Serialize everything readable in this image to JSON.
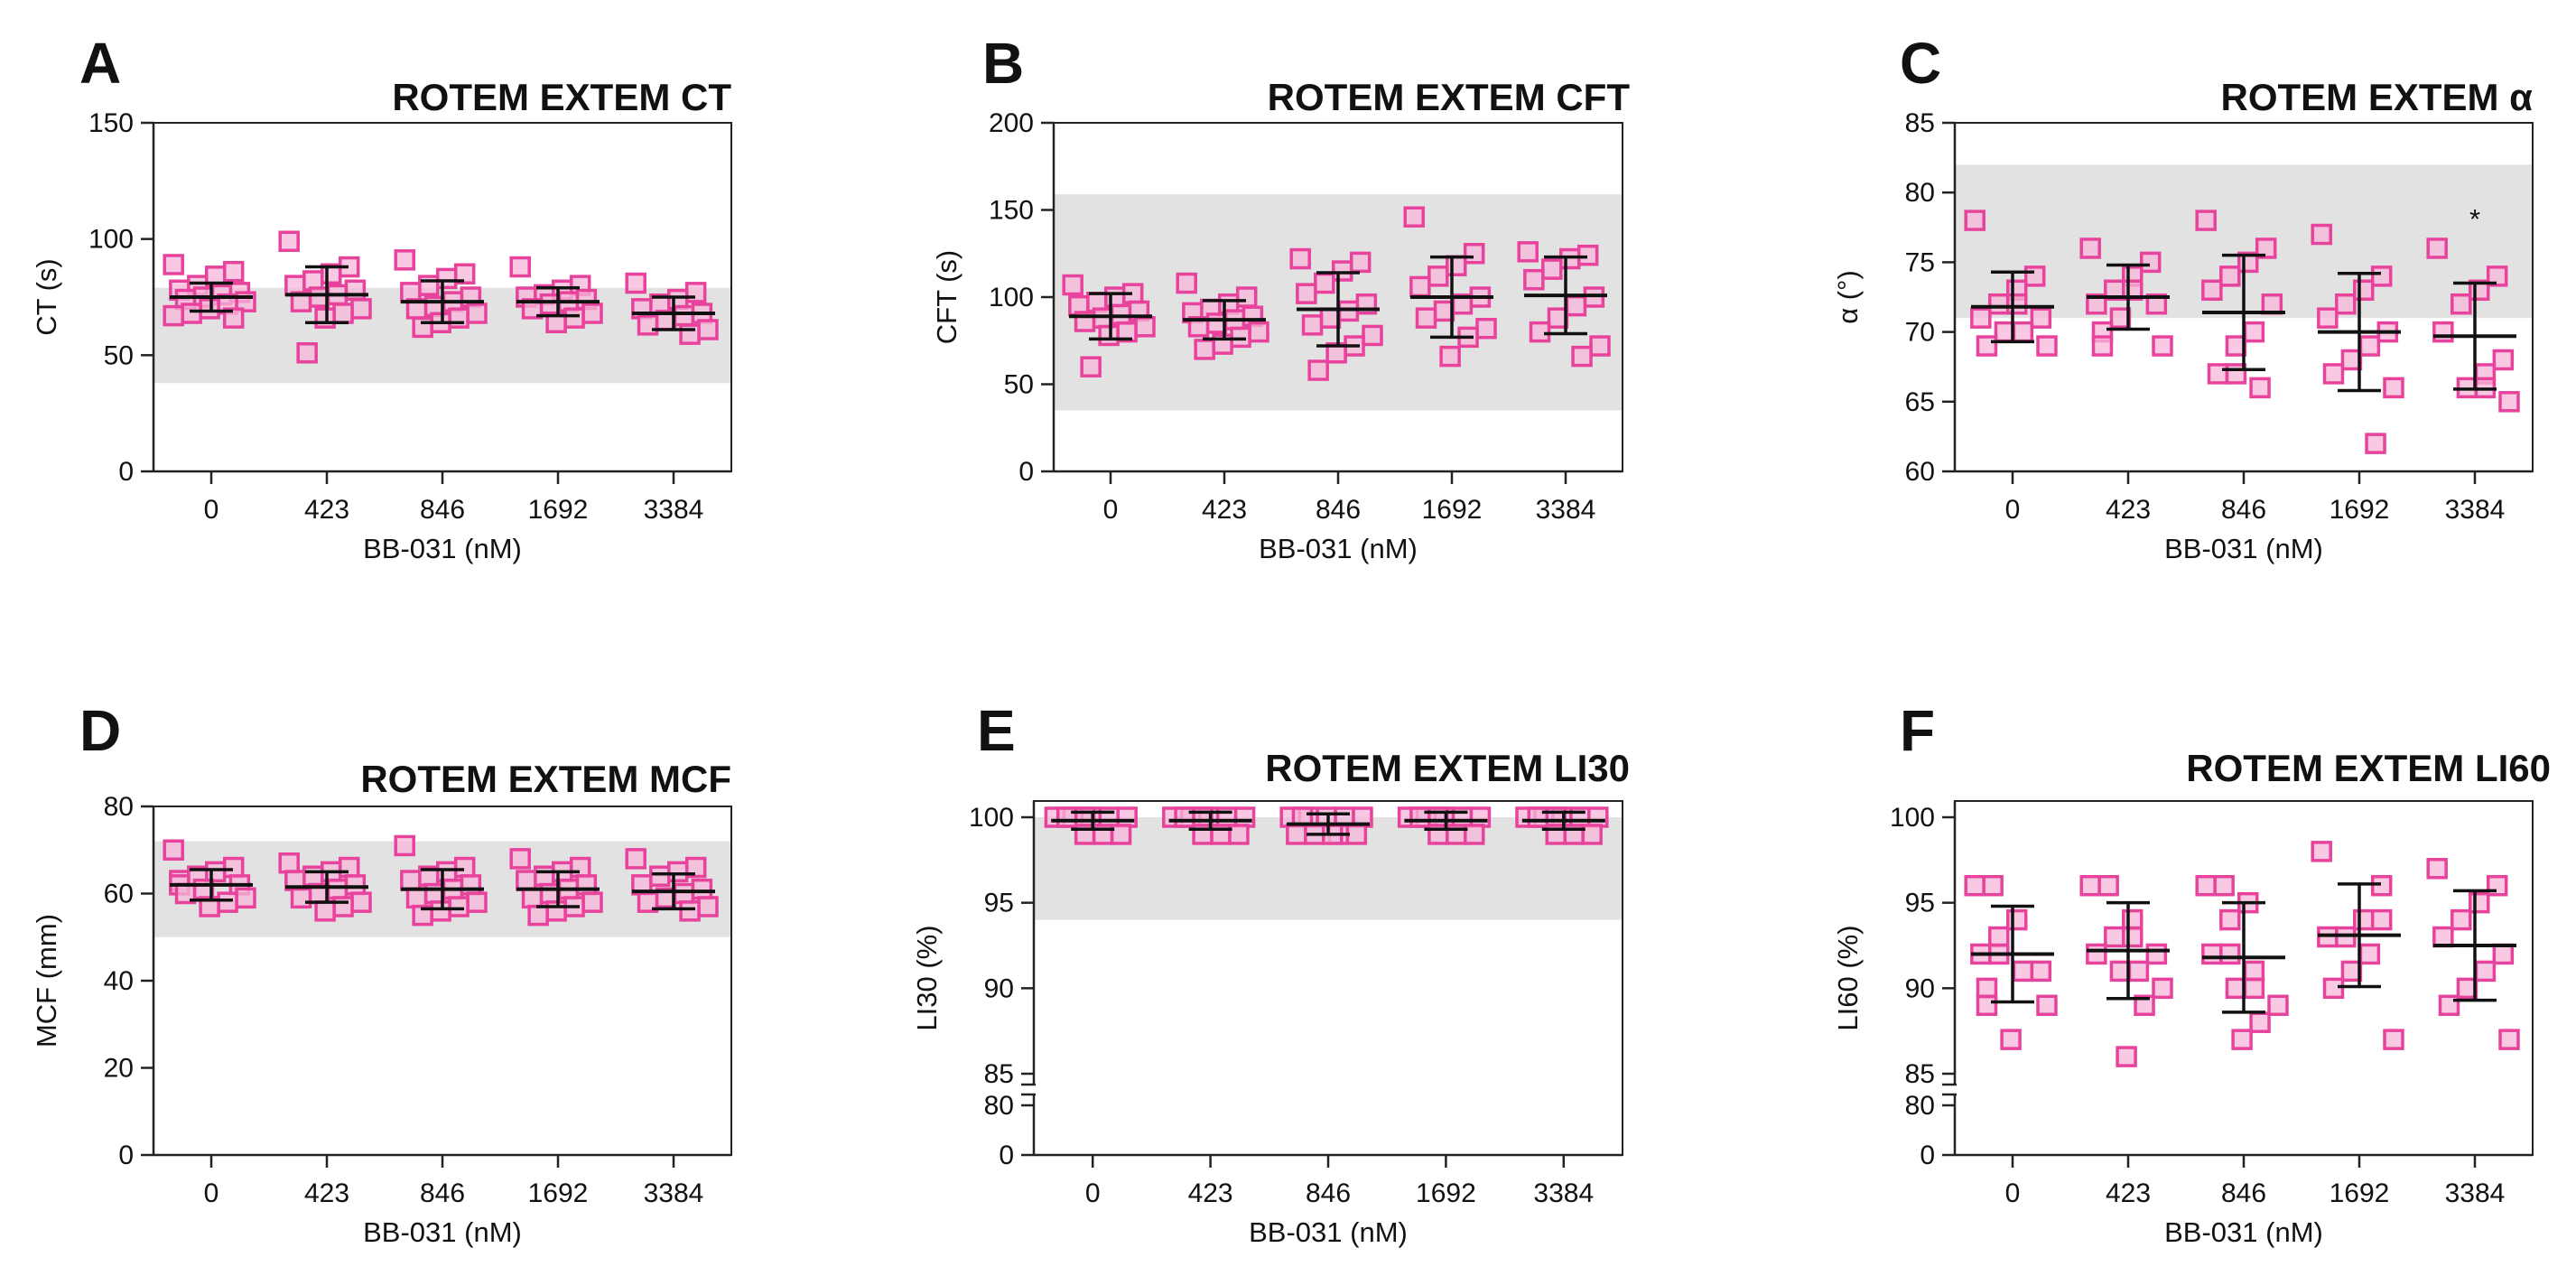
{
  "chart_data": [
    {
      "type": "scatter",
      "panel": "A",
      "title": "ROTEM EXTEM CT",
      "xlabel": "BB-031 (nM)",
      "ylabel": "CT (s)",
      "categories": [
        "0",
        "423",
        "846",
        "1692",
        "3384"
      ],
      "yticks": [
        0,
        50,
        100,
        150
      ],
      "ylim": [
        0,
        150
      ],
      "reference_range": [
        38,
        79
      ],
      "series": [
        {
          "name": "0",
          "points": [
            89,
            86,
            84,
            80,
            78,
            77,
            76,
            75,
            74,
            73,
            72,
            70,
            68,
            67,
            66
          ],
          "mean": 75,
          "sd": 6
        },
        {
          "name": "423",
          "points": [
            99,
            88,
            85,
            82,
            80,
            78,
            76,
            75,
            73,
            70,
            68,
            66,
            51
          ],
          "mean": 76,
          "sd": 12
        },
        {
          "name": "846",
          "points": [
            91,
            85,
            83,
            80,
            77,
            75,
            73,
            71,
            70,
            68,
            66,
            64,
            62
          ],
          "mean": 73,
          "sd": 9
        },
        {
          "name": "1692",
          "points": [
            88,
            80,
            78,
            76,
            75,
            74,
            73,
            72,
            70,
            68,
            66,
            64
          ],
          "mean": 73,
          "sd": 6
        },
        {
          "name": "3384",
          "points": [
            81,
            77,
            74,
            72,
            70,
            68,
            67,
            65,
            63,
            61,
            59
          ],
          "mean": 68,
          "sd": 7
        }
      ],
      "marker": "square",
      "color": "#e8439c",
      "fill": "#f7b6d8"
    },
    {
      "type": "scatter",
      "panel": "B",
      "title": "ROTEM EXTEM CFT",
      "xlabel": "BB-031 (nM)",
      "ylabel": "CFT (s)",
      "categories": [
        "0",
        "423",
        "846",
        "1692",
        "3384"
      ],
      "yticks": [
        0,
        50,
        100,
        150,
        200
      ],
      "ylim": [
        0,
        200
      ],
      "reference_range": [
        35,
        159
      ],
      "series": [
        {
          "name": "0",
          "points": [
            107,
            102,
            100,
            97,
            95,
            92,
            90,
            88,
            86,
            83,
            80,
            78,
            60
          ],
          "mean": 89,
          "sd": 13
        },
        {
          "name": "423",
          "points": [
            108,
            100,
            96,
            93,
            91,
            89,
            87,
            85,
            83,
            80,
            77,
            73,
            70
          ],
          "mean": 87,
          "sd": 11
        },
        {
          "name": "846",
          "points": [
            122,
            120,
            115,
            108,
            102,
            96,
            92,
            88,
            84,
            78,
            72,
            68,
            58
          ],
          "mean": 93,
          "sd": 21
        },
        {
          "name": "1692",
          "points": [
            146,
            125,
            118,
            112,
            106,
            100,
            96,
            92,
            88,
            82,
            77,
            66
          ],
          "mean": 100,
          "sd": 23
        },
        {
          "name": "3384",
          "points": [
            126,
            124,
            122,
            116,
            110,
            100,
            95,
            88,
            80,
            72,
            66
          ],
          "mean": 101,
          "sd": 22
        }
      ],
      "marker": "square",
      "color": "#e8439c",
      "fill": "#f7b6d8"
    },
    {
      "type": "scatter",
      "panel": "C",
      "title": "ROTEM  EXTEM α",
      "xlabel": "BB-031 (nM)",
      "ylabel": "α (°)",
      "categories": [
        "0",
        "423",
        "846",
        "1692",
        "3384"
      ],
      "yticks": [
        60,
        65,
        70,
        75,
        80,
        85
      ],
      "ylim": [
        60,
        85
      ],
      "reference_range": [
        71,
        82
      ],
      "annotation": {
        "text": "*",
        "category": "3384"
      },
      "series": [
        {
          "name": "0",
          "points": [
            78,
            74,
            73,
            72,
            72,
            71,
            71,
            70,
            70,
            69,
            69
          ],
          "mean": 71.8,
          "sd": 2.5
        },
        {
          "name": "423",
          "points": [
            76,
            75,
            74,
            73,
            73,
            72,
            72,
            71,
            70,
            69,
            69
          ],
          "mean": 72.5,
          "sd": 2.3
        },
        {
          "name": "846",
          "points": [
            78,
            76,
            75,
            74,
            73,
            72,
            70,
            69,
            67,
            67,
            66
          ],
          "mean": 71.4,
          "sd": 4.1
        },
        {
          "name": "1692",
          "points": [
            77,
            74,
            73,
            72,
            71,
            70,
            69,
            68,
            67,
            66,
            62
          ],
          "mean": 70,
          "sd": 4.2
        },
        {
          "name": "3384",
          "points": [
            76,
            74,
            73,
            72,
            70,
            68,
            67,
            66,
            66,
            65
          ],
          "mean": 69.7,
          "sd": 3.8
        }
      ],
      "marker": "square",
      "color": "#e8439c",
      "fill": "#f7b6d8"
    },
    {
      "type": "scatter",
      "panel": "D",
      "title": "ROTEM EXTEM MCF",
      "xlabel": "BB-031 (nM)",
      "ylabel": "MCF (mm)",
      "categories": [
        "0",
        "423",
        "846",
        "1692",
        "3384"
      ],
      "yticks": [
        0,
        20,
        40,
        60,
        80
      ],
      "ylim": [
        0,
        80
      ],
      "reference_range": [
        50,
        72
      ],
      "series": [
        {
          "name": "0",
          "points": [
            70,
            66,
            65,
            64,
            63,
            62,
            62,
            61,
            60,
            59,
            58,
            57
          ],
          "mean": 62,
          "sd": 3.5
        },
        {
          "name": "423",
          "points": [
            67,
            66,
            65,
            64,
            63,
            62,
            61,
            60,
            59,
            58,
            57,
            56
          ],
          "mean": 61.5,
          "sd": 3.5
        },
        {
          "name": "846",
          "points": [
            71,
            66,
            65,
            64,
            63,
            62,
            61,
            60,
            59,
            58,
            57,
            56,
            55
          ],
          "mean": 61,
          "sd": 4.5
        },
        {
          "name": "1692",
          "points": [
            68,
            66,
            65,
            64,
            63,
            62,
            61,
            60,
            59,
            58,
            57,
            56,
            55
          ],
          "mean": 61,
          "sd": 4
        },
        {
          "name": "3384",
          "points": [
            68,
            66,
            65,
            64,
            62,
            61,
            60,
            59,
            58,
            57,
            56
          ],
          "mean": 60.5,
          "sd": 4
        }
      ],
      "marker": "square",
      "color": "#e8439c",
      "fill": "#f7b6d8"
    },
    {
      "type": "scatter",
      "panel": "E",
      "title": "ROTEM  EXTEM LI30",
      "xlabel": "BB-031 (nM)",
      "ylabel": "LI30 (%)",
      "categories": [
        "0",
        "423",
        "846",
        "1692",
        "3384"
      ],
      "yticks": [
        0,
        80,
        85,
        90,
        95,
        100
      ],
      "ylim": [
        0,
        100
      ],
      "axis_break": [
        80,
        85
      ],
      "reference_range": [
        94,
        100
      ],
      "series": [
        {
          "name": "0",
          "points": [
            100,
            100,
            100,
            100,
            100,
            100,
            100,
            99,
            99,
            99
          ],
          "mean": 99.8,
          "sd": 0.5
        },
        {
          "name": "423",
          "points": [
            100,
            100,
            100,
            100,
            100,
            100,
            100,
            99,
            99,
            99
          ],
          "mean": 99.8,
          "sd": 0.5
        },
        {
          "name": "846",
          "points": [
            100,
            100,
            100,
            100,
            100,
            100,
            99,
            99,
            99,
            99,
            99
          ],
          "mean": 99.6,
          "sd": 0.6
        },
        {
          "name": "1692",
          "points": [
            100,
            100,
            100,
            100,
            100,
            100,
            100,
            99,
            99,
            99
          ],
          "mean": 99.8,
          "sd": 0.5
        },
        {
          "name": "3384",
          "points": [
            100,
            100,
            100,
            100,
            100,
            100,
            100,
            99,
            99,
            99
          ],
          "mean": 99.8,
          "sd": 0.5
        }
      ],
      "marker": "square",
      "color": "#e8439c",
      "fill": "#f7b6d8"
    },
    {
      "type": "scatter",
      "panel": "F",
      "title": "ROTEM EXTEM LI60",
      "xlabel": "BB-031 (nM)",
      "ylabel": "LI60 (%)",
      "categories": [
        "0",
        "423",
        "846",
        "1692",
        "3384"
      ],
      "yticks": [
        0,
        80,
        85,
        90,
        95,
        100
      ],
      "ylim": [
        0,
        100
      ],
      "axis_break": [
        80,
        85
      ],
      "series": [
        {
          "name": "0",
          "points": [
            96,
            96,
            94,
            93,
            92,
            92,
            91,
            91,
            90,
            89,
            89,
            87
          ],
          "mean": 92,
          "sd": 2.8
        },
        {
          "name": "423",
          "points": [
            96,
            96,
            94,
            93,
            93,
            92,
            92,
            91,
            91,
            90,
            89,
            86
          ],
          "mean": 92.2,
          "sd": 2.8
        },
        {
          "name": "846",
          "points": [
            96,
            96,
            95,
            94,
            92,
            92,
            91,
            90,
            90,
            89,
            88,
            87
          ],
          "mean": 91.8,
          "sd": 3.2
        },
        {
          "name": "1692",
          "points": [
            98,
            96,
            94,
            94,
            93,
            93,
            92,
            91,
            90,
            87
          ],
          "mean": 93.1,
          "sd": 3
        },
        {
          "name": "3384",
          "points": [
            97,
            96,
            95,
            94,
            93,
            92,
            91,
            90,
            89,
            87
          ],
          "mean": 92.5,
          "sd": 3.2
        }
      ],
      "marker": "square",
      "color": "#e8439c",
      "fill": "#f7b6d8"
    }
  ]
}
